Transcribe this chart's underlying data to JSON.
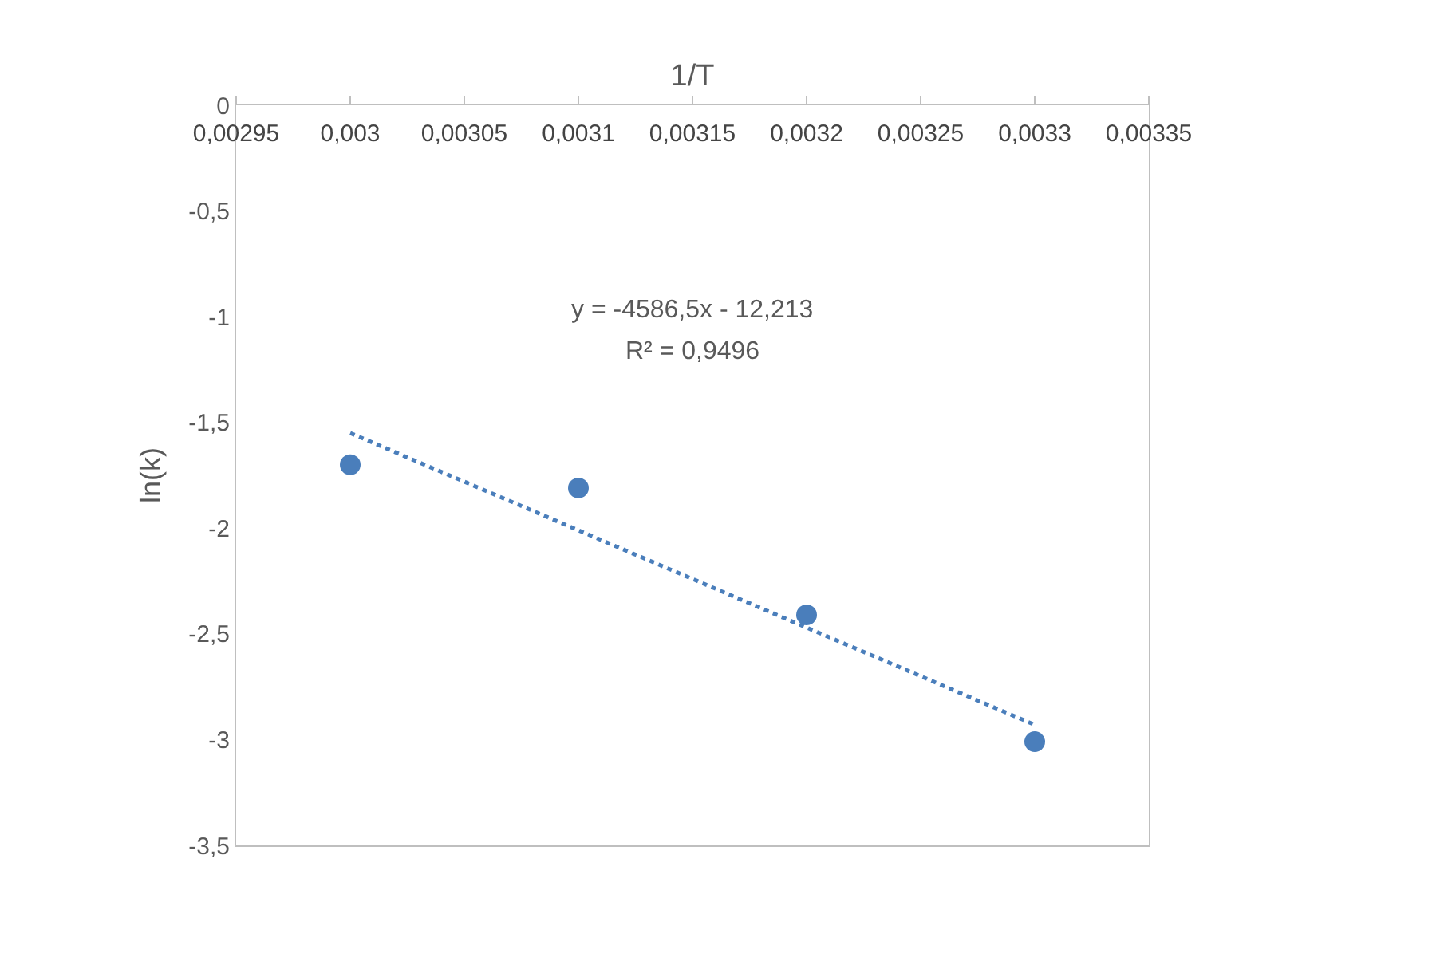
{
  "chart_data": {
    "type": "scatter",
    "xlabel": "1/T",
    "ylabel": "ln(k)",
    "annotations": [
      "y = -4586,5x - 12,213",
      "R² = 0,9496"
    ],
    "xlim": [
      0.00295,
      0.00335
    ],
    "xticks": [
      {
        "value": 0.00295,
        "label": "0,00295"
      },
      {
        "value": 0.003,
        "label": "0,003"
      },
      {
        "value": 0.00305,
        "label": "0,00305"
      },
      {
        "value": 0.0031,
        "label": "0,0031"
      },
      {
        "value": 0.00315,
        "label": "0,00315"
      },
      {
        "value": 0.0032,
        "label": "0,0032"
      },
      {
        "value": 0.00325,
        "label": "0,00325"
      },
      {
        "value": 0.0033,
        "label": "0,0033"
      },
      {
        "value": 0.00335,
        "label": "0,00335"
      }
    ],
    "ylim": [
      -3.5,
      0
    ],
    "yticks": [
      0,
      {
        "value": -0.5,
        "label": "-0,5"
      },
      -1,
      {
        "value": -1.5,
        "label": "-1,5"
      },
      -2,
      {
        "value": -2.5,
        "label": "-2,5"
      },
      -3,
      {
        "value": -3.5,
        "label": "-3,5"
      }
    ],
    "grid": false,
    "marker": "circle",
    "series": [
      {
        "color": "#4a7ebb",
        "x": [
          0.003,
          0.0031,
          0.0032,
          0.0033
        ],
        "values": [
          -1.7,
          -1.81,
          -2.41,
          -3.01
        ]
      },
      {
        "type": "line",
        "color": "#4a7ebb",
        "line_style": "dotted",
        "marker": "none",
        "x": [
          0.003,
          0.0033
        ],
        "values": [
          -1.55,
          -2.93
        ]
      }
    ]
  }
}
